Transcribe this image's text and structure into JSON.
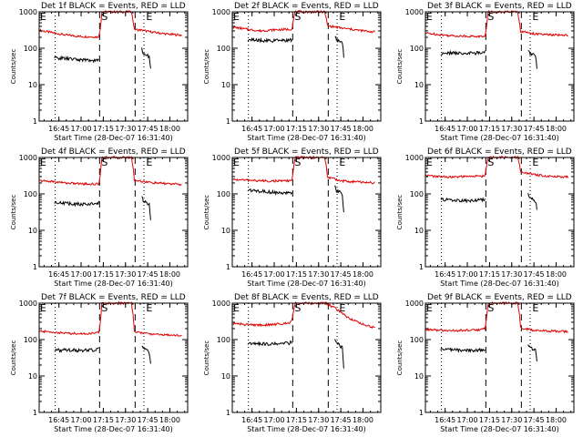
{
  "figure": {
    "colors": {
      "events": "#000000",
      "lld": "#e00000",
      "axes": "#000000",
      "background": "#ffffff"
    },
    "marker_labels": {
      "e": "E",
      "s": "S"
    },
    "marker_times": {
      "dotted": [
        "16:42:30",
        "17:42:30"
      ],
      "dashed": [
        "17:12:30",
        "17:36:30"
      ]
    }
  },
  "chart_data": [
    {
      "type": "line",
      "title": "Det 1f BLACK = Events, RED = LLD",
      "xlabel": "Start Time (28-Dec-07 16:31:40)",
      "ylabel": "Counts/sec",
      "yscale": "log",
      "ylim": [
        1,
        1000
      ],
      "yticks": [
        "1",
        "10",
        "100",
        "1000"
      ],
      "xlim": [
        "16:31:40",
        "18:12:00"
      ],
      "xticks": [
        "16:45",
        "17:00",
        "17:15",
        "17:30",
        "17:45",
        "18:00"
      ],
      "series": [
        {
          "name": "LLD",
          "x": [
            "16:32",
            "16:40",
            "16:50",
            "17:00",
            "17:10",
            "17:12",
            "17:13",
            "17:14",
            "17:34",
            "17:35",
            "17:36",
            "17:38",
            "17:42",
            "17:45",
            "17:50",
            "18:00",
            "18:08"
          ],
          "y": [
            310,
            270,
            230,
            210,
            205,
            210,
            350,
            1000,
            1000,
            600,
            330,
            320,
            310,
            290,
            270,
            240,
            230
          ]
        },
        {
          "name": "Events",
          "x": [
            "16:42",
            "16:50",
            "17:00",
            "17:10",
            "17:12",
            "17:41",
            "17:42",
            "17:44",
            "17:46",
            "17:47"
          ],
          "y": [
            55,
            52,
            48,
            46,
            48,
            95,
            70,
            65,
            60,
            30
          ]
        }
      ]
    },
    {
      "type": "line",
      "title": "Det 2f BLACK = Events, RED = LLD",
      "xlabel": "Start Time (28-Dec-07 16:31:40)",
      "ylabel": "Counts/sec",
      "yscale": "log",
      "ylim": [
        1,
        1000
      ],
      "yticks": [
        "1",
        "10",
        "100",
        "1000"
      ],
      "xlim": [
        "16:31:40",
        "18:12:00"
      ],
      "xticks": [
        "16:45",
        "17:00",
        "17:15",
        "17:30",
        "17:45",
        "18:00"
      ],
      "series": [
        {
          "name": "LLD",
          "x": [
            "16:32",
            "16:40",
            "16:50",
            "17:00",
            "17:10",
            "17:12",
            "17:13",
            "17:14",
            "17:34",
            "17:35",
            "17:36",
            "17:38",
            "17:42",
            "17:45",
            "17:50",
            "18:00",
            "18:08"
          ],
          "y": [
            380,
            340,
            300,
            320,
            330,
            340,
            600,
            1000,
            1000,
            700,
            420,
            400,
            380,
            360,
            340,
            300,
            280
          ]
        },
        {
          "name": "Events",
          "x": [
            "16:42",
            "16:50",
            "17:00",
            "17:10",
            "17:12",
            "17:41",
            "17:42",
            "17:44",
            "17:46",
            "17:47"
          ],
          "y": [
            170,
            165,
            160,
            165,
            170,
            220,
            170,
            160,
            150,
            60
          ]
        }
      ]
    },
    {
      "type": "line",
      "title": "Det 3f BLACK = Events, RED = LLD",
      "xlabel": "Start Time (28-Dec-07 16:31:40)",
      "ylabel": "Counts/sec",
      "yscale": "log",
      "ylim": [
        1,
        1000
      ],
      "yticks": [
        "1",
        "10",
        "100",
        "1000"
      ],
      "xlim": [
        "16:31:40",
        "18:12:00"
      ],
      "xticks": [
        "16:45",
        "17:00",
        "17:15",
        "17:30",
        "17:45",
        "18:00"
      ],
      "series": [
        {
          "name": "LLD",
          "x": [
            "16:32",
            "16:40",
            "16:50",
            "17:00",
            "17:10",
            "17:12",
            "17:13",
            "17:14",
            "17:34",
            "17:35",
            "17:36",
            "17:38",
            "17:42",
            "17:45",
            "17:50",
            "18:00",
            "18:08"
          ],
          "y": [
            260,
            240,
            220,
            215,
            210,
            215,
            400,
            1000,
            1000,
            600,
            290,
            280,
            270,
            250,
            240,
            230,
            230
          ]
        },
        {
          "name": "Events",
          "x": [
            "16:42",
            "16:50",
            "17:00",
            "17:10",
            "17:12",
            "17:41",
            "17:42",
            "17:44",
            "17:46",
            "17:47"
          ],
          "y": [
            70,
            75,
            72,
            75,
            78,
            90,
            75,
            70,
            65,
            30
          ]
        }
      ]
    },
    {
      "type": "line",
      "title": "Det 4f BLACK = Events, RED = LLD",
      "xlabel": "Start Time (28-Dec-07 16:31:40)",
      "ylabel": "Counts/sec",
      "yscale": "log",
      "ylim": [
        1,
        1000
      ],
      "yticks": [
        "1",
        "10",
        "100",
        "1000"
      ],
      "xlim": [
        "16:31:40",
        "18:12:00"
      ],
      "xticks": [
        "16:45",
        "17:00",
        "17:15",
        "17:30",
        "17:45",
        "18:00"
      ],
      "series": [
        {
          "name": "LLD",
          "x": [
            "16:32",
            "16:40",
            "16:50",
            "17:00",
            "17:10",
            "17:12",
            "17:13",
            "17:14",
            "17:34",
            "17:35",
            "17:36",
            "17:38",
            "17:42",
            "17:45",
            "17:50",
            "18:00",
            "18:08"
          ],
          "y": [
            230,
            220,
            200,
            190,
            185,
            190,
            350,
            1000,
            1000,
            600,
            240,
            230,
            220,
            210,
            200,
            190,
            180
          ]
        },
        {
          "name": "Events",
          "x": [
            "16:42",
            "16:50",
            "17:00",
            "17:10",
            "17:12",
            "17:41",
            "17:42",
            "17:44",
            "17:46",
            "17:47"
          ],
          "y": [
            60,
            55,
            52,
            55,
            58,
            80,
            65,
            60,
            50,
            18
          ]
        }
      ]
    },
    {
      "type": "line",
      "title": "Det 5f BLACK = Events, RED = LLD",
      "xlabel": "Start Time (28-Dec-07 16:31:40)",
      "ylabel": "Counts/sec",
      "yscale": "log",
      "ylim": [
        1,
        1000
      ],
      "yticks": [
        "1",
        "10",
        "100",
        "1000"
      ],
      "xlim": [
        "16:31:40",
        "18:12:00"
      ],
      "xticks": [
        "16:45",
        "17:00",
        "17:15",
        "17:30",
        "17:45",
        "18:00"
      ],
      "series": [
        {
          "name": "LLD",
          "x": [
            "16:32",
            "16:40",
            "16:50",
            "17:00",
            "17:10",
            "17:12",
            "17:13",
            "17:14",
            "17:34",
            "17:35",
            "17:36",
            "17:38",
            "17:42",
            "17:45",
            "17:50",
            "18:00",
            "18:08"
          ],
          "y": [
            250,
            240,
            230,
            225,
            230,
            240,
            450,
            1000,
            1000,
            650,
            300,
            270,
            250,
            230,
            220,
            210,
            200
          ]
        },
        {
          "name": "Events",
          "x": [
            "16:42",
            "16:50",
            "17:00",
            "17:10",
            "17:12",
            "17:41",
            "17:42",
            "17:44",
            "17:46",
            "17:47"
          ],
          "y": [
            130,
            120,
            110,
            105,
            110,
            160,
            120,
            110,
            100,
            30
          ]
        }
      ]
    },
    {
      "type": "line",
      "title": "Det 6f BLACK = Events, RED = LLD",
      "xlabel": "Start Time (28-Dec-07 16:31:40)",
      "ylabel": "Counts/sec",
      "yscale": "log",
      "ylim": [
        1,
        1000
      ],
      "yticks": [
        "1",
        "10",
        "100",
        "1000"
      ],
      "xlim": [
        "16:31:40",
        "18:12:00"
      ],
      "xticks": [
        "16:45",
        "17:00",
        "17:15",
        "17:30",
        "17:45",
        "18:00"
      ],
      "series": [
        {
          "name": "LLD",
          "x": [
            "16:32",
            "16:40",
            "16:50",
            "17:00",
            "17:10",
            "17:12",
            "17:13",
            "17:14",
            "17:34",
            "17:35",
            "17:36",
            "17:38",
            "17:42",
            "17:45",
            "17:50",
            "18:00",
            "18:08"
          ],
          "y": [
            320,
            300,
            290,
            300,
            310,
            320,
            600,
            1000,
            1000,
            700,
            420,
            380,
            360,
            340,
            320,
            300,
            290
          ]
        },
        {
          "name": "Events",
          "x": [
            "16:42",
            "16:50",
            "17:00",
            "17:10",
            "17:12",
            "17:41",
            "17:42",
            "17:44",
            "17:46",
            "17:47"
          ],
          "y": [
            70,
            68,
            65,
            68,
            70,
            95,
            75,
            70,
            65,
            40
          ]
        }
      ]
    },
    {
      "type": "line",
      "title": "Det 7f BLACK = Events, RED = LLD",
      "xlabel": "Start Time (28-Dec-07 16:31:40)",
      "ylabel": "Counts/sec",
      "yscale": "log",
      "ylim": [
        1,
        1000
      ],
      "yticks": [
        "1",
        "10",
        "100",
        "1000"
      ],
      "xlim": [
        "16:31:40",
        "18:12:00"
      ],
      "xticks": [
        "16:45",
        "17:00",
        "17:15",
        "17:30",
        "17:45",
        "18:00"
      ],
      "series": [
        {
          "name": "LLD",
          "x": [
            "16:32",
            "16:40",
            "16:50",
            "17:00",
            "17:10",
            "17:12",
            "17:13",
            "17:14",
            "17:34",
            "17:35",
            "17:36",
            "17:38",
            "17:42",
            "17:45",
            "17:50",
            "18:00",
            "18:08"
          ],
          "y": [
            170,
            160,
            150,
            145,
            150,
            160,
            300,
            1000,
            1000,
            500,
            170,
            160,
            150,
            145,
            140,
            135,
            130
          ]
        },
        {
          "name": "Events",
          "x": [
            "16:42",
            "16:50",
            "17:00",
            "17:10",
            "17:12",
            "17:41",
            "17:42",
            "17:44",
            "17:46",
            "17:47"
          ],
          "y": [
            50,
            52,
            50,
            52,
            55,
            70,
            55,
            50,
            45,
            20
          ]
        }
      ]
    },
    {
      "type": "line",
      "title": "Det 8f BLACK = Events, RED = LLD",
      "xlabel": "Start Time (28-Dec-07 16:31:40)",
      "ylabel": "Counts/sec",
      "yscale": "log",
      "ylim": [
        1,
        1000
      ],
      "yticks": [
        "1",
        "10",
        "100",
        "1000"
      ],
      "xlim": [
        "16:31:40",
        "18:12:00"
      ],
      "xticks": [
        "16:45",
        "17:00",
        "17:15",
        "17:30",
        "17:45",
        "18:00"
      ],
      "series": [
        {
          "name": "LLD",
          "x": [
            "16:32",
            "16:40",
            "16:50",
            "17:00",
            "17:10",
            "17:12",
            "17:13",
            "17:14",
            "17:34",
            "17:35",
            "17:36",
            "17:38",
            "17:42",
            "17:45",
            "17:50",
            "18:00",
            "18:08"
          ],
          "y": [
            280,
            260,
            250,
            260,
            290,
            340,
            600,
            1000,
            1000,
            1000,
            950,
            850,
            700,
            550,
            400,
            260,
            210
          ]
        },
        {
          "name": "Events",
          "x": [
            "16:42",
            "16:50",
            "17:00",
            "17:10",
            "17:12",
            "17:41",
            "17:42",
            "17:44",
            "17:46",
            "17:47"
          ],
          "y": [
            80,
            78,
            75,
            80,
            85,
            110,
            80,
            70,
            60,
            15
          ]
        }
      ]
    },
    {
      "type": "line",
      "title": "Det 9f BLACK = Events, RED = LLD",
      "xlabel": "Start Time (28-Dec-07 16:31:40)",
      "ylabel": "Counts/sec",
      "yscale": "log",
      "ylim": [
        1,
        1000
      ],
      "yticks": [
        "1",
        "10",
        "100",
        "1000"
      ],
      "xlim": [
        "16:31:40",
        "18:12:00"
      ],
      "xticks": [
        "16:45",
        "17:00",
        "17:15",
        "17:30",
        "17:45",
        "18:00"
      ],
      "series": [
        {
          "name": "LLD",
          "x": [
            "16:32",
            "16:40",
            "16:50",
            "17:00",
            "17:10",
            "17:12",
            "17:13",
            "17:14",
            "17:34",
            "17:35",
            "17:36",
            "17:38",
            "17:42",
            "17:45",
            "17:50",
            "18:00",
            "18:08"
          ],
          "y": [
            190,
            180,
            175,
            180,
            190,
            200,
            400,
            1000,
            1000,
            600,
            220,
            200,
            190,
            180,
            175,
            170,
            165
          ]
        },
        {
          "name": "Events",
          "x": [
            "16:42",
            "16:50",
            "17:00",
            "17:10",
            "17:12",
            "17:41",
            "17:42",
            "17:44",
            "17:46",
            "17:47"
          ],
          "y": [
            55,
            52,
            50,
            52,
            55,
            75,
            60,
            55,
            50,
            25
          ]
        }
      ]
    }
  ]
}
